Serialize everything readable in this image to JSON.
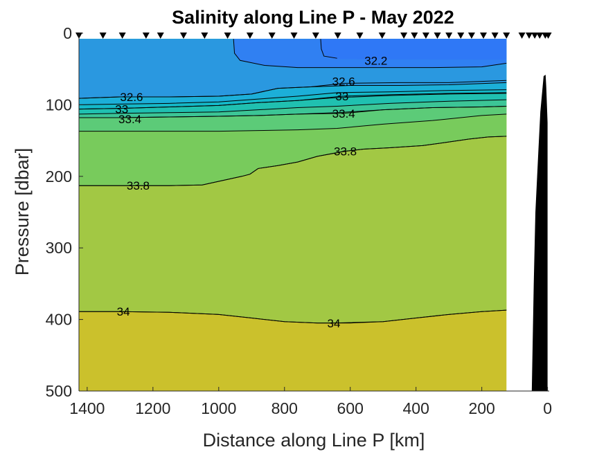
{
  "chart_data": {
    "type": "contour",
    "title": "Salinity along Line P - May 2022",
    "xlabel": "Distance along Line P [km]",
    "ylabel": "Pressure [dbar]",
    "xlim": [
      1425,
      -5
    ],
    "x_reversed": true,
    "ylim": [
      0,
      500
    ],
    "y_reversed": true,
    "xticks": [
      1400,
      1200,
      1000,
      800,
      600,
      400,
      200,
      0
    ],
    "yticks": [
      0,
      100,
      200,
      300,
      400,
      500
    ],
    "data_extent_x": [
      1425,
      125
    ],
    "data_extent_p": [
      8,
      500
    ],
    "grid": false,
    "colormap": "parula",
    "bands": [
      {
        "range": "<32.2",
        "color": "#3080f2"
      },
      {
        "range": "32.2-32.6",
        "color": "#2a98e0"
      },
      {
        "range": "32.6-32.8",
        "color": "#1cafd8"
      },
      {
        "range": "32.8-33.0",
        "color": "#14b8c8"
      },
      {
        "range": "33.0-33.2",
        "color": "#20c0b0"
      },
      {
        "range": "33.2-33.4",
        "color": "#3cc596"
      },
      {
        "range": "33.4-33.6",
        "color": "#5ccb78"
      },
      {
        "range": "33.6-33.8",
        "color": "#78cb5c"
      },
      {
        "range": "33.8-34.0",
        "color": "#a2c844"
      },
      {
        "range": ">34.0",
        "color": "#cbc12c"
      }
    ],
    "contours": [
      {
        "level": "32.2",
        "label": "32.2",
        "label_pos": [
          522,
          38
        ],
        "points": [
          [
            955,
            0
          ],
          [
            952,
            28
          ],
          [
            935,
            38
          ],
          [
            860,
            45
          ],
          [
            760,
            48
          ],
          [
            640,
            48
          ],
          [
            500,
            48
          ],
          [
            350,
            48
          ],
          [
            200,
            47
          ],
          [
            125,
            42
          ]
        ]
      },
      {
        "level": "32.6",
        "label": "32.6",
        "label_pos": [
          1265,
          89
        ],
        "points": [
          [
            1425,
            91
          ],
          [
            1300,
            89
          ],
          [
            1150,
            89
          ],
          [
            1000,
            88
          ],
          [
            900,
            85
          ],
          [
            820,
            77
          ],
          [
            720,
            75
          ],
          [
            600,
            73
          ],
          [
            450,
            73
          ],
          [
            300,
            72
          ],
          [
            125,
            69
          ]
        ]
      },
      {
        "level": "32.6",
        "label": "32.6",
        "label_pos": [
          620,
          67
        ],
        "points": [
          [
            1425,
            91
          ],
          [
            1300,
            89
          ],
          [
            1150,
            89
          ],
          [
            1000,
            88
          ],
          [
            900,
            85
          ],
          [
            820,
            77
          ],
          [
            720,
            75
          ],
          [
            620,
            70
          ],
          [
            450,
            69
          ],
          [
            300,
            69
          ],
          [
            125,
            66
          ]
        ]
      },
      {
        "level": "32.8",
        "label": "",
        "points": [
          [
            1425,
            100
          ],
          [
            1300,
            99
          ],
          [
            1150,
            98
          ],
          [
            1000,
            96
          ],
          [
            880,
            92
          ],
          [
            760,
            88
          ],
          [
            640,
            83
          ],
          [
            480,
            82
          ],
          [
            300,
            80
          ],
          [
            125,
            79
          ]
        ]
      },
      {
        "level": "33",
        "label": "33",
        "label_pos": [
          1295,
          106
        ],
        "points": [
          [
            1425,
            106
          ],
          [
            1300,
            105
          ],
          [
            1150,
            103
          ],
          [
            1000,
            101
          ],
          [
            880,
            97
          ],
          [
            760,
            94
          ],
          [
            640,
            90
          ],
          [
            480,
            87
          ],
          [
            300,
            85
          ],
          [
            125,
            84
          ]
        ]
      },
      {
        "level": "33",
        "label": "33",
        "label_pos": [
          625,
          88
        ],
        "points": [
          [
            1425,
            106
          ],
          [
            1300,
            105
          ],
          [
            1150,
            103
          ],
          [
            1000,
            101
          ],
          [
            880,
            97
          ],
          [
            760,
            94
          ],
          [
            625,
            88
          ],
          [
            480,
            86
          ],
          [
            300,
            84
          ],
          [
            125,
            83
          ]
        ]
      },
      {
        "level": "33.2",
        "label": "",
        "points": [
          [
            1425,
            113
          ],
          [
            1300,
            112
          ],
          [
            1150,
            111
          ],
          [
            1000,
            110
          ],
          [
            880,
            107
          ],
          [
            760,
            104
          ],
          [
            640,
            102
          ],
          [
            480,
            98
          ],
          [
            300,
            95
          ],
          [
            125,
            93
          ]
        ]
      },
      {
        "level": "33.4",
        "label": "33.4",
        "label_pos": [
          1270,
          120
        ],
        "points": [
          [
            1425,
            118
          ],
          [
            1300,
            118
          ],
          [
            1150,
            117
          ],
          [
            1000,
            116
          ],
          [
            880,
            115
          ],
          [
            760,
            113
          ],
          [
            640,
            111
          ],
          [
            500,
            107
          ],
          [
            350,
            104
          ],
          [
            200,
            103
          ],
          [
            125,
            102
          ]
        ]
      },
      {
        "level": "33.4",
        "label": "33.4",
        "label_pos": [
          620,
          112
        ],
        "points": [
          [
            1425,
            118
          ],
          [
            1300,
            118
          ],
          [
            1150,
            117
          ],
          [
            1000,
            116
          ],
          [
            880,
            115
          ],
          [
            760,
            113
          ],
          [
            620,
            112
          ],
          [
            500,
            107
          ],
          [
            350,
            104
          ],
          [
            200,
            103
          ],
          [
            125,
            102
          ]
        ]
      },
      {
        "level": "33.6",
        "label": "",
        "points": [
          [
            1425,
            137
          ],
          [
            1300,
            137
          ],
          [
            1150,
            137
          ],
          [
            1000,
            137
          ],
          [
            880,
            136
          ],
          [
            760,
            135
          ],
          [
            640,
            133
          ],
          [
            500,
            127
          ],
          [
            350,
            122
          ],
          [
            200,
            115
          ],
          [
            125,
            113
          ]
        ]
      },
      {
        "level": "33.8",
        "label": "33.8",
        "label_pos": [
          1245,
          213
        ],
        "points": [
          [
            1425,
            213
          ],
          [
            1300,
            213
          ],
          [
            1150,
            213
          ],
          [
            1050,
            212
          ],
          [
            990,
            206
          ],
          [
            930,
            200
          ],
          [
            905,
            197
          ],
          [
            880,
            189
          ],
          [
            820,
            185
          ],
          [
            760,
            180
          ],
          [
            700,
            172
          ],
          [
            620,
            165
          ],
          [
            560,
            162
          ],
          [
            480,
            160
          ],
          [
            380,
            157
          ],
          [
            300,
            152
          ],
          [
            240,
            148
          ],
          [
            180,
            145
          ],
          [
            125,
            144
          ]
        ]
      },
      {
        "level": "33.8",
        "label": "33.8",
        "label_pos": [
          615,
          165
        ],
        "points": [
          [
            1425,
            213
          ],
          [
            1300,
            213
          ],
          [
            1150,
            213
          ],
          [
            1050,
            212
          ],
          [
            990,
            206
          ],
          [
            930,
            200
          ],
          [
            905,
            197
          ],
          [
            880,
            189
          ],
          [
            820,
            185
          ],
          [
            760,
            180
          ],
          [
            700,
            172
          ],
          [
            615,
            165
          ],
          [
            560,
            162
          ],
          [
            480,
            160
          ],
          [
            380,
            157
          ],
          [
            300,
            152
          ],
          [
            240,
            148
          ],
          [
            180,
            145
          ],
          [
            125,
            144
          ]
        ]
      },
      {
        "level": "34",
        "label": "34",
        "label_pos": [
          1290,
          389
        ],
        "points": [
          [
            1425,
            389
          ],
          [
            1300,
            389
          ],
          [
            1150,
            390
          ],
          [
            1000,
            393
          ],
          [
            900,
            398
          ],
          [
            800,
            403
          ],
          [
            700,
            405
          ],
          [
            600,
            405
          ],
          [
            500,
            403
          ],
          [
            400,
            398
          ],
          [
            300,
            393
          ],
          [
            200,
            389
          ],
          [
            125,
            387
          ]
        ]
      },
      {
        "level": "34",
        "label": "34",
        "label_pos": [
          650,
          405
        ],
        "points": [
          [
            1425,
            389
          ],
          [
            1300,
            389
          ],
          [
            1150,
            390
          ],
          [
            1000,
            393
          ],
          [
            900,
            398
          ],
          [
            800,
            403
          ],
          [
            700,
            405
          ],
          [
            650,
            405
          ],
          [
            500,
            403
          ],
          [
            400,
            398
          ],
          [
            300,
            393
          ],
          [
            200,
            389
          ],
          [
            125,
            387
          ]
        ]
      }
    ],
    "stations_km": [
      1425,
      1352,
      1293,
      1221,
      1177,
      1107,
      1043,
      973,
      905,
      838,
      771,
      705,
      638,
      571,
      503,
      437,
      405,
      370,
      335,
      300,
      264,
      231,
      195,
      160,
      125,
      78,
      56,
      39,
      24,
      7,
      -2
    ],
    "seafloor": {
      "color": "#000000",
      "points": [
        [
          48,
          500
        ],
        [
          42,
          350
        ],
        [
          37,
          250
        ],
        [
          28,
          165
        ],
        [
          22,
          110
        ],
        [
          12,
          60
        ],
        [
          6,
          58
        ],
        [
          4,
          75
        ],
        [
          0,
          125
        ],
        [
          0,
          500
        ]
      ]
    }
  }
}
